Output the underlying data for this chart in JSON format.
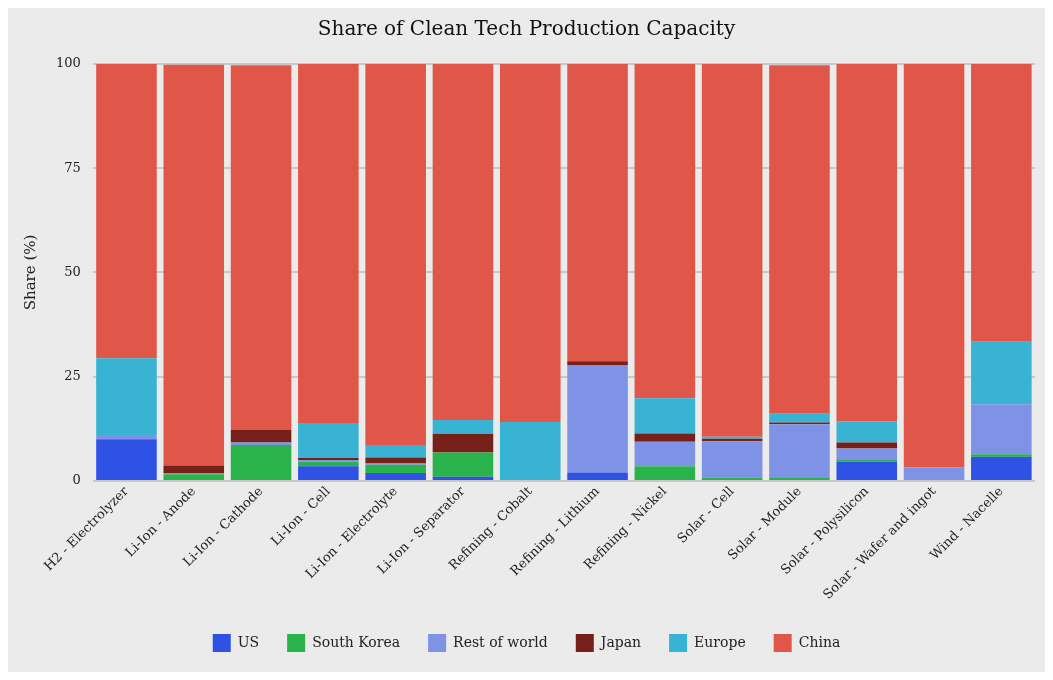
{
  "chart_data": {
    "type": "bar",
    "title": "Share of Clean Tech Production Capacity",
    "ylabel": "Share (%)",
    "categories": [
      "H2 - Electrolyzer",
      "Li-Ion - Anode",
      "Li-Ion - Cathode",
      "Li-Ion - Cell",
      "Li-Ion - Electrolyte",
      "Li-Ion - Separator",
      "Refining - Cobalt",
      "Refining - Lithium",
      "Refining - Nickel",
      "Solar - Cell",
      "Solar - Module",
      "Solar - Polysilicon",
      "Solar - Wafer and ingot",
      "Wind - Nacelle"
    ],
    "stacked": true,
    "series": [
      {
        "name": "US",
        "color": "#2e52e4",
        "values": [
          10,
          null,
          null,
          3.5,
          1.9,
          1.0,
          0,
          2.0,
          0,
          0,
          null,
          4.6,
          0,
          5.8
        ]
      },
      {
        "name": "South Korea",
        "color": "#2ab34a",
        "values": [
          0,
          1.6,
          8.6,
          1.1,
          2.0,
          5.8,
          0,
          0,
          3.5,
          0.8,
          0.7,
          0.6,
          0,
          0.6
        ]
      },
      {
        "name": "Rest of world",
        "color": "#7e93e6",
        "values": [
          1,
          0.3,
          0.6,
          0.4,
          0.3,
          0,
          0,
          25.7,
          5.9,
          8.7,
          12.9,
          2.6,
          3.3,
          12.0
        ]
      },
      {
        "name": "Japan",
        "color": "#77201a",
        "values": [
          0,
          1.8,
          3.0,
          0.5,
          1.4,
          4.5,
          0,
          1.0,
          2.0,
          0.6,
          0.4,
          1.4,
          0,
          0
        ]
      },
      {
        "name": "Europe",
        "color": "#38b3d3",
        "values": [
          18.4,
          0,
          0,
          8.4,
          3.0,
          3.3,
          14.1,
          0,
          8.4,
          0.5,
          2.1,
          5.1,
          0,
          15.0
        ]
      },
      {
        "name": "China",
        "color": "#e05749",
        "values": [
          70.6,
          96.1,
          87.5,
          86.1,
          91.4,
          85.4,
          85.9,
          71.3,
          80.2,
          89.4,
          83.6,
          85.7,
          96.7,
          66.6
        ]
      }
    ],
    "ylim": [
      0,
      100
    ],
    "yticks": [
      0,
      25,
      50,
      75,
      100
    ],
    "grid": "y",
    "legend": "bottom"
  }
}
